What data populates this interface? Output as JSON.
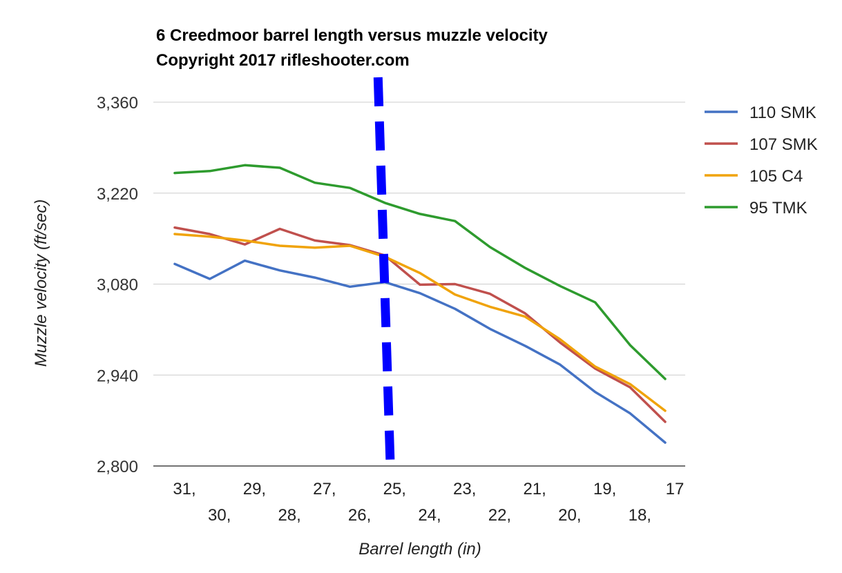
{
  "chart_data": {
    "type": "line",
    "title": "6 Creedmoor barrel length versus muzzle velocity",
    "subtitle": "Copyright 2017 rifleshooter.com",
    "xlabel": "Barrel length (in)",
    "ylabel": "Muzzle velocity (ft/sec)",
    "x": [
      31,
      30,
      29,
      28,
      27,
      26,
      25,
      24,
      23,
      22,
      21,
      20,
      19,
      18,
      17
    ],
    "x_tick_labels": [
      "31,",
      "30,",
      "29,",
      "28,",
      "27,",
      "26,",
      "25,",
      "24,",
      "23,",
      "22,",
      "21,",
      "20,",
      "19,",
      "18,",
      "17"
    ],
    "ylim": [
      2800,
      3360
    ],
    "y_ticks": [
      2800,
      2940,
      3080,
      3220,
      3360
    ],
    "y_tick_labels": [
      "2,800",
      "2,940",
      "3,080",
      "3,220",
      "3,360"
    ],
    "grid": true,
    "legend_position": "right",
    "series": [
      {
        "name": "110 SMK",
        "color": "#4472c4",
        "values": [
          3111,
          3088,
          3116,
          3101,
          3090,
          3076,
          3083,
          3066,
          3042,
          3011,
          2985,
          2956,
          2914,
          2881,
          2836
        ]
      },
      {
        "name": "107 SMK",
        "color": "#c0504d",
        "values": [
          3167,
          3157,
          3141,
          3165,
          3147,
          3140,
          3124,
          3079,
          3080,
          3065,
          3035,
          2990,
          2950,
          2921,
          2868
        ]
      },
      {
        "name": "105 C4",
        "color": "#f0a30a",
        "values": [
          3157,
          3153,
          3147,
          3139,
          3136,
          3139,
          3122,
          3097,
          3064,
          3045,
          3030,
          2995,
          2953,
          2926,
          2885
        ]
      },
      {
        "name": "95 TMK",
        "color": "#2e9b2e",
        "values": [
          3251,
          3254,
          3263,
          3259,
          3236,
          3228,
          3205,
          3188,
          3177,
          3137,
          3105,
          3077,
          3052,
          2986,
          2934
        ]
      }
    ],
    "annotation_line": {
      "x": 25,
      "color": "#0000ff",
      "style": "dashed"
    }
  }
}
